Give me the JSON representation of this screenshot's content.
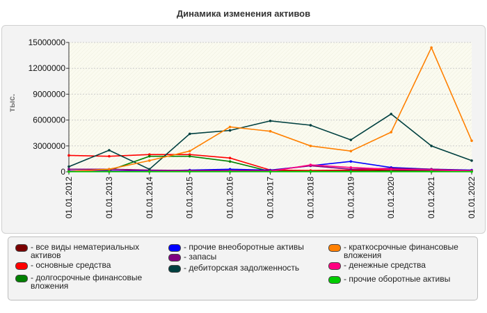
{
  "chart_data": {
    "type": "line",
    "title": "Динамика изменения активов",
    "ylabel": "тыс.",
    "xlabel": "",
    "ylim": [
      0,
      15000000
    ],
    "yticks": [
      0,
      3000000,
      6000000,
      9000000,
      12000000,
      15000000
    ],
    "ytick_labels": [
      "0",
      "3000000",
      "6000000",
      "9000000",
      "12000000",
      "15000000"
    ],
    "categories": [
      "01.01.2012",
      "01.01.2013",
      "01.01.2014",
      "01.01.2015",
      "01.01.2016",
      "01.01.2017",
      "01.01.2018",
      "01.01.2019",
      "01.01.2020",
      "01.01.2021",
      "01.01.2022"
    ],
    "legend_position": "bottom",
    "series": [
      {
        "name": "- все виды нематериальных активов",
        "color": "#7a0000",
        "values": [
          300000,
          300000,
          150000,
          100000,
          100000,
          100000,
          100000,
          100000,
          150000,
          150000,
          100000
        ]
      },
      {
        "name": "- основные средства",
        "color": "#ff0000",
        "values": [
          1900000,
          1800000,
          2000000,
          2000000,
          1600000,
          200000,
          150000,
          200000,
          300000,
          300000,
          150000
        ]
      },
      {
        "name": "- долгосрочные финансовые вложения",
        "color": "#008000",
        "values": [
          100000,
          150000,
          1800000,
          1800000,
          1200000,
          50000,
          50000,
          50000,
          50000,
          50000,
          50000
        ]
      },
      {
        "name": "- прочие внеоборотные активы",
        "color": "#0000ff",
        "values": [
          100000,
          100000,
          100000,
          200000,
          300000,
          200000,
          700000,
          1200000,
          500000,
          300000,
          200000
        ]
      },
      {
        "name": "- запасы",
        "color": "#800080",
        "values": [
          300000,
          300000,
          200000,
          150000,
          150000,
          150000,
          700000,
          300000,
          400000,
          300000,
          150000
        ]
      },
      {
        "name": "- дебиторская задолженность",
        "color": "#004040",
        "values": [
          600000,
          2500000,
          300000,
          4400000,
          4800000,
          5900000,
          5400000,
          3700000,
          6700000,
          3000000,
          1300000
        ]
      },
      {
        "name": "- краткосрочные финансовые вложения",
        "color": "#ff8000",
        "values": [
          50000,
          300000,
          1300000,
          2400000,
          5200000,
          4700000,
          3000000,
          2400000,
          4600000,
          14400000,
          3600000
        ]
      },
      {
        "name": "- денежные средства",
        "color": "#ff0080",
        "values": [
          50000,
          50000,
          50000,
          50000,
          50000,
          50000,
          800000,
          500000,
          300000,
          200000,
          100000
        ]
      },
      {
        "name": "- прочие оборотные активы",
        "color": "#00cc00",
        "values": [
          20000,
          20000,
          20000,
          20000,
          20000,
          20000,
          20000,
          20000,
          20000,
          20000,
          20000
        ]
      }
    ]
  }
}
